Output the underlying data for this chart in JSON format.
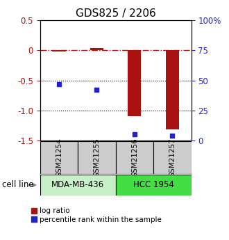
{
  "title": "GDS825 / 2206",
  "samples": [
    "GSM21254",
    "GSM21255",
    "GSM21256",
    "GSM21257"
  ],
  "log_ratio": [
    -0.02,
    0.04,
    -1.1,
    -1.32
  ],
  "percentile": [
    47,
    42,
    5,
    4
  ],
  "cell_lines": [
    {
      "label": "MDA-MB-436",
      "samples": [
        0,
        1
      ],
      "color": "#c8f0c8"
    },
    {
      "label": "HCC 1954",
      "samples": [
        2,
        3
      ],
      "color": "#44dd44"
    }
  ],
  "ylim_left": [
    -1.5,
    0.5
  ],
  "ylim_right": [
    0,
    100
  ],
  "yticks_left": [
    0.5,
    0,
    -0.5,
    -1.0,
    -1.5
  ],
  "yticks_right": [
    100,
    75,
    50,
    25,
    0
  ],
  "ytick_labels_right": [
    "100%",
    "75",
    "50",
    "25",
    "0"
  ],
  "hlines_dotted": [
    -0.5,
    -1.0
  ],
  "bar_color": "#aa1111",
  "square_color": "#2222cc",
  "bar_width": 0.35,
  "legend_items": [
    {
      "label": "log ratio",
      "color": "#aa1111"
    },
    {
      "label": "percentile rank within the sample",
      "color": "#2222cc"
    }
  ],
  "cell_line_label": "cell line",
  "sample_box_color": "#cccccc",
  "title_fontsize": 11,
  "tick_fontsize": 8.5,
  "sample_fontsize": 7.5,
  "cell_fontsize": 8.5,
  "legend_fontsize": 7.5
}
